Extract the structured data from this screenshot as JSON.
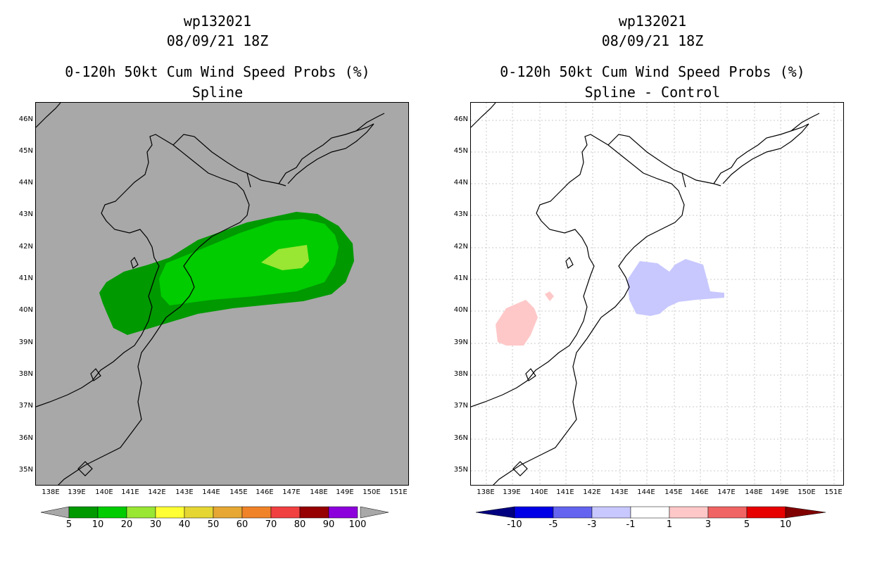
{
  "left_panel": {
    "title_line1": "wp132021",
    "title_line2": "08/09/21 18Z",
    "title_line3": "0-120h 50kt Cum Wind Speed Probs (%)",
    "title_line4": "Spline",
    "background_color": "#a8a8a8",
    "colorbar": {
      "labels": [
        "5",
        "10",
        "20",
        "30",
        "40",
        "50",
        "60",
        "70",
        "80",
        "90",
        "100"
      ],
      "colors": [
        "#009900",
        "#00cc00",
        "#99e633",
        "#ffff33",
        "#e6d633",
        "#e6a833",
        "#f08228",
        "#f04040",
        "#960000",
        "#8c00dc"
      ]
    }
  },
  "right_panel": {
    "title_line1": "wp132021",
    "title_line2": "08/09/21 18Z",
    "title_line3": "0-120h 50kt Cum Wind Speed Probs (%)",
    "title_line4": "Spline - Control",
    "background_color": "#ffffff",
    "colorbar": {
      "labels": [
        "-10",
        "-5",
        "-3",
        "-1",
        "1",
        "3",
        "5",
        "10"
      ],
      "colors": [
        "#000080",
        "#0000e6",
        "#6464f0",
        "#c8c8ff",
        "#ffffff",
        "#ffc8c8",
        "#f06464",
        "#e60000",
        "#800000"
      ]
    }
  },
  "axes": {
    "lat_labels": [
      "46N",
      "45N",
      "44N",
      "43N",
      "42N",
      "41N",
      "40N",
      "39N",
      "38N",
      "37N",
      "36N",
      "35N"
    ],
    "lon_labels": [
      "138E",
      "139E",
      "140E",
      "141E",
      "142E",
      "143E",
      "144E",
      "145E",
      "146E",
      "147E",
      "148E",
      "149E",
      "150E",
      "151E"
    ]
  }
}
